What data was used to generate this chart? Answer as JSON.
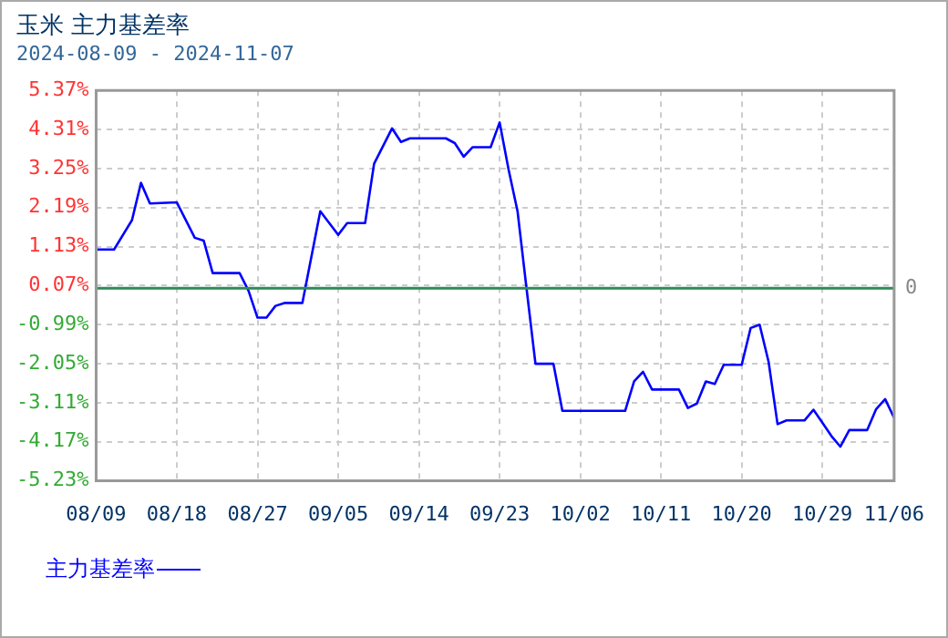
{
  "chart_data": {
    "type": "line",
    "title": "玉米  主力基差率",
    "subtitle": "2024-08-09 - 2024-11-07",
    "x": [
      "2024-08-09",
      "2024-08-11",
      "2024-08-13",
      "2024-08-14",
      "2024-08-15",
      "2024-08-18",
      "2024-08-20",
      "2024-08-21",
      "2024-08-22",
      "2024-08-25",
      "2024-08-26",
      "2024-08-27",
      "2024-08-28",
      "2024-08-29",
      "2024-08-30",
      "2024-09-01",
      "2024-09-03",
      "2024-09-04",
      "2024-09-05",
      "2024-09-06",
      "2024-09-08",
      "2024-09-09",
      "2024-09-11",
      "2024-09-12",
      "2024-09-13",
      "2024-09-17",
      "2024-09-18",
      "2024-09-19",
      "2024-09-20",
      "2024-09-22",
      "2024-09-23",
      "2024-09-24",
      "2024-09-25",
      "2024-09-26",
      "2024-09-27",
      "2024-09-29",
      "2024-09-30",
      "2024-10-07",
      "2024-10-08",
      "2024-10-09",
      "2024-10-10",
      "2024-10-13",
      "2024-10-14",
      "2024-10-15",
      "2024-10-16",
      "2024-10-17",
      "2024-10-18",
      "2024-10-20",
      "2024-10-21",
      "2024-10-22",
      "2024-10-23",
      "2024-10-24",
      "2024-10-25",
      "2024-10-27",
      "2024-10-28",
      "2024-10-29",
      "2024-10-30",
      "2024-10-31",
      "2024-11-01",
      "2024-11-03",
      "2024-11-04",
      "2024-11-05",
      "2024-11-06"
    ],
    "series": [
      {
        "name": "主力基差率",
        "color": "#0000ff",
        "values": [
          1.05,
          1.05,
          1.85,
          2.86,
          2.3,
          2.33,
          1.37,
          1.29,
          0.41,
          0.41,
          -0.07,
          -0.8,
          -0.8,
          -0.48,
          -0.4,
          -0.4,
          2.09,
          1.77,
          1.45,
          1.77,
          1.77,
          3.38,
          4.34,
          3.97,
          4.07,
          4.07,
          3.94,
          3.57,
          3.83,
          3.83,
          4.5,
          3.22,
          2.09,
          0.0,
          -2.05,
          -2.05,
          -3.33,
          -3.33,
          -2.53,
          -2.27,
          -2.75,
          -2.75,
          -3.25,
          -3.13,
          -2.53,
          -2.6,
          -2.08,
          -2.08,
          -1.08,
          -0.99,
          -2.0,
          -3.69,
          -3.59,
          -3.59,
          -3.3,
          -3.65,
          -4.01,
          -4.3,
          -3.85,
          -3.85,
          -3.28,
          -3.01,
          -3.52
        ]
      }
    ],
    "xlim": [
      "2024-08-09",
      "2024-11-06"
    ],
    "xticks": [
      {
        "value": "2024-08-09",
        "label": "08/09"
      },
      {
        "value": "2024-08-18",
        "label": "08/18"
      },
      {
        "value": "2024-08-27",
        "label": "08/27"
      },
      {
        "value": "2024-09-05",
        "label": "09/05"
      },
      {
        "value": "2024-09-14",
        "label": "09/14"
      },
      {
        "value": "2024-09-23",
        "label": "09/23"
      },
      {
        "value": "2024-10-02",
        "label": "10/02"
      },
      {
        "value": "2024-10-11",
        "label": "10/11"
      },
      {
        "value": "2024-10-20",
        "label": "10/20"
      },
      {
        "value": "2024-10-29",
        "label": "10/29"
      },
      {
        "value": "2024-11-06",
        "label": "11/06"
      }
    ],
    "ylim": [
      -5.23,
      5.37
    ],
    "yticks": [
      {
        "value": -5.23,
        "label": "-5.23%"
      },
      {
        "value": -4.17,
        "label": "-4.17%"
      },
      {
        "value": -3.11,
        "label": "-3.11%"
      },
      {
        "value": -2.05,
        "label": "-2.05%"
      },
      {
        "value": -0.99,
        "label": "-0.99%"
      },
      {
        "value": 0.07,
        "label": "0.07%"
      },
      {
        "value": 1.13,
        "label": "1.13%"
      },
      {
        "value": 2.19,
        "label": "2.19%"
      },
      {
        "value": 3.25,
        "label": "3.25%"
      },
      {
        "value": 4.31,
        "label": "4.31%"
      },
      {
        "value": 5.37,
        "label": "5.37%"
      }
    ],
    "ref_lines": [
      {
        "axis": "y",
        "value": 0,
        "label": "0",
        "color": "#2e8b57"
      }
    ],
    "grid": true,
    "legend": "bottom left",
    "marker": "none",
    "line_style": "solid"
  }
}
